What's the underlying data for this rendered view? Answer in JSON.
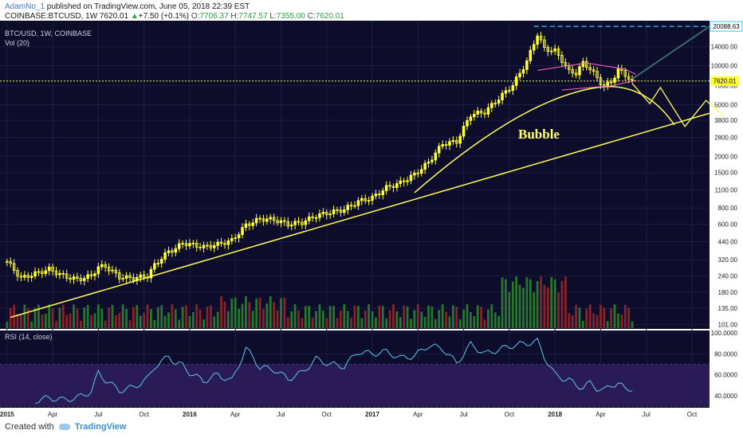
{
  "header": {
    "author": "AdamNo_1",
    "published": " published on TradingView.com, June 05, 2018 22:39 EST",
    "symbol": "COINBASE:BTCUSD, 1W",
    "last": "7620.01",
    "change_arrow": "▲",
    "change": "+7.50 (+0.1%)",
    "o_label": "O:",
    "o_value": "7706.37",
    "h_label": "H:",
    "h_value": "7747.57",
    "l_label": "L:",
    "l_value": "7355.00",
    "c_label": "C:",
    "c_value": "7620.01"
  },
  "legend": {
    "series": "BTC/USD, 1W, COINBASE",
    "volume": "Vol (20)",
    "rsi": "RSI (14, close)"
  },
  "annotation": "Bubble",
  "footer": {
    "created_with": "Created with",
    "brand": "TradingView"
  },
  "colors": {
    "background": "#0d0d2b",
    "up_candle": "#ffff33",
    "down_candle": "#ffff33",
    "vol_up": "#2e8b2e",
    "vol_down": "#a02828",
    "trendline": "#ffff55",
    "rsi_line": "#5bc8f0",
    "rsi_band": "#2a1a55",
    "grid": "#1c1c44",
    "dash_line": "#33ccee",
    "pink": "#ff66cc"
  },
  "chart_data": {
    "type": "candlestick",
    "x_tick_labels": [
      "2015",
      "Apr",
      "Jul",
      "Oct",
      "2016",
      "Apr",
      "Jul",
      "Oct",
      "2017",
      "Apr",
      "Jul",
      "Oct",
      "2018",
      "Apr",
      "Jul",
      "Oct"
    ],
    "price_axis": {
      "scale": "log",
      "tick_labels": [
        "14000.00",
        "10000.00",
        "7000.00",
        "5000.00",
        "3800.00",
        "2800.00",
        "2000.00",
        "1500.00",
        "1100.00",
        "800.00",
        "600.00",
        "440.00",
        "320.00",
        "240.00",
        "180.00",
        "135.00",
        "101.00"
      ],
      "tick_values": [
        14000,
        10000,
        7000,
        5000,
        3800,
        2800,
        2000,
        1500,
        1100,
        800,
        600,
        440,
        320,
        240,
        180,
        135,
        101
      ],
      "range": [
        95,
        21000
      ],
      "last_price_label": "7620.01",
      "high_label": "20088.63"
    },
    "rsi_axis": {
      "tick_labels": [
        "100.0000",
        "80.0000",
        "60.0000",
        "40.0000"
      ],
      "tick_values": [
        100,
        80,
        60,
        40
      ],
      "range": [
        30,
        100
      ],
      "band": [
        30,
        70
      ]
    },
    "weekly_close_approx": [
      [
        0,
        310
      ],
      [
        4,
        230
      ],
      [
        8,
        250
      ],
      [
        12,
        270
      ],
      [
        16,
        240
      ],
      [
        20,
        225
      ],
      [
        24,
        240
      ],
      [
        26,
        280
      ],
      [
        28,
        285
      ],
      [
        32,
        235
      ],
      [
        36,
        230
      ],
      [
        40,
        240
      ],
      [
        42,
        290
      ],
      [
        44,
        330
      ],
      [
        46,
        370
      ],
      [
        48,
        390
      ],
      [
        50,
        430
      ],
      [
        52,
        420
      ],
      [
        56,
        400
      ],
      [
        60,
        420
      ],
      [
        64,
        450
      ],
      [
        68,
        590
      ],
      [
        72,
        660
      ],
      [
        76,
        650
      ],
      [
        80,
        600
      ],
      [
        84,
        620
      ],
      [
        88,
        700
      ],
      [
        92,
        740
      ],
      [
        96,
        780
      ],
      [
        100,
        900
      ],
      [
        104,
        960
      ],
      [
        108,
        1150
      ],
      [
        112,
        1250
      ],
      [
        116,
        1450
      ],
      [
        120,
        1800
      ],
      [
        124,
        2500
      ],
      [
        128,
        2600
      ],
      [
        132,
        4200
      ],
      [
        136,
        4400
      ],
      [
        140,
        5600
      ],
      [
        144,
        7100
      ],
      [
        148,
        10800
      ],
      [
        151,
        17500
      ],
      [
        153,
        13500
      ],
      [
        156,
        13000
      ],
      [
        158,
        11000
      ],
      [
        160,
        9000
      ],
      [
        162,
        8800
      ],
      [
        164,
        10500
      ],
      [
        166,
        9500
      ],
      [
        168,
        8000
      ],
      [
        170,
        6900
      ],
      [
        172,
        7500
      ],
      [
        174,
        9300
      ],
      [
        176,
        8500
      ],
      [
        178,
        7600
      ]
    ],
    "rsi_approx": [
      [
        8,
        35
      ],
      [
        12,
        38
      ],
      [
        16,
        36
      ],
      [
        20,
        38
      ],
      [
        24,
        44
      ],
      [
        26,
        62
      ],
      [
        28,
        55
      ],
      [
        32,
        45
      ],
      [
        36,
        48
      ],
      [
        40,
        56
      ],
      [
        42,
        68
      ],
      [
        44,
        72
      ],
      [
        46,
        78
      ],
      [
        48,
        71
      ],
      [
        50,
        69
      ],
      [
        52,
        62
      ],
      [
        56,
        54
      ],
      [
        60,
        60
      ],
      [
        64,
        54
      ],
      [
        68,
        85
      ],
      [
        70,
        77
      ],
      [
        72,
        67
      ],
      [
        76,
        65
      ],
      [
        80,
        56
      ],
      [
        84,
        62
      ],
      [
        88,
        75
      ],
      [
        92,
        70
      ],
      [
        96,
        68
      ],
      [
        100,
        82
      ],
      [
        104,
        80
      ],
      [
        108,
        82
      ],
      [
        112,
        76
      ],
      [
        116,
        78
      ],
      [
        120,
        88
      ],
      [
        124,
        85
      ],
      [
        128,
        71
      ],
      [
        132,
        89
      ],
      [
        136,
        80
      ],
      [
        140,
        84
      ],
      [
        144,
        88
      ],
      [
        148,
        90
      ],
      [
        151,
        92
      ],
      [
        153,
        77
      ],
      [
        156,
        60
      ],
      [
        158,
        57
      ],
      [
        160,
        55
      ],
      [
        162,
        50
      ],
      [
        164,
        48
      ],
      [
        166,
        52
      ],
      [
        168,
        47
      ],
      [
        170,
        45
      ],
      [
        172,
        50
      ],
      [
        174,
        52
      ],
      [
        176,
        46
      ],
      [
        178,
        47
      ]
    ]
  }
}
